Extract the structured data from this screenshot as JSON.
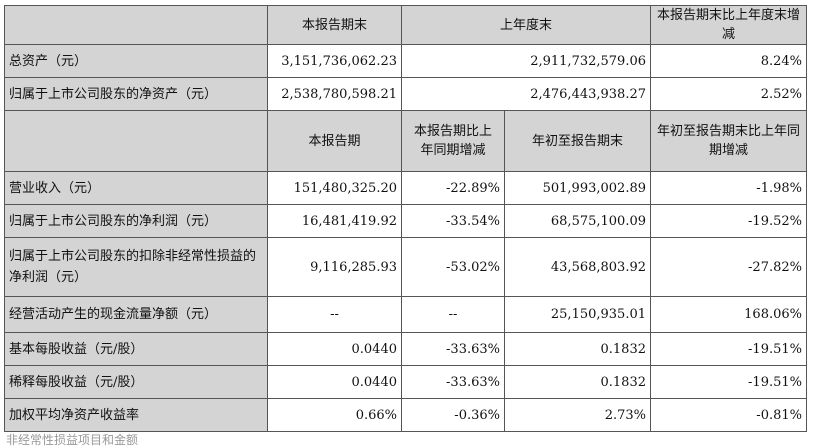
{
  "section1": {
    "headers": [
      "本报告期末",
      "上年度末",
      "本报告期末比上年度末增减"
    ],
    "rows": [
      {
        "label": "总资产（元）",
        "v1": "3,151,736,062.23",
        "v2": "2,911,732,579.06",
        "v3": "8.24%"
      },
      {
        "label": "归属于上市公司股东的净资产（元）",
        "v1": "2,538,780,598.21",
        "v2": "2,476,443,938.27",
        "v3": "2.52%"
      }
    ]
  },
  "section2": {
    "headers": [
      "本报告期",
      "本报告期比上年同期增减",
      "年初至报告期末",
      "年初至报告期末比上年同期增减"
    ],
    "rows": [
      {
        "label": "营业收入（元）",
        "v1": "151,480,325.20",
        "v2": "-22.89%",
        "v3": "501,993,002.89",
        "v4": "-1.98%"
      },
      {
        "label": "归属于上市公司股东的净利润（元）",
        "v1": "16,481,419.92",
        "v2": "-33.54%",
        "v3": "68,575,100.09",
        "v4": "-19.52%"
      },
      {
        "label": "归属于上市公司股东的扣除非经常性损益的净利润（元）",
        "v1": "9,116,285.93",
        "v2": "-53.02%",
        "v3": "43,568,803.92",
        "v4": "-27.82%"
      },
      {
        "label": "经营活动产生的现金流量净额（元）",
        "v1": "--",
        "v2": "--",
        "v3": "25,150,935.01",
        "v4": "168.06%"
      },
      {
        "label": "基本每股收益（元/股）",
        "v1": "0.0440",
        "v2": "-33.63%",
        "v3": "0.1832",
        "v4": "-19.51%"
      },
      {
        "label": "稀释每股收益（元/股）",
        "v1": "0.0440",
        "v2": "-33.63%",
        "v3": "0.1832",
        "v4": "-19.51%"
      },
      {
        "label": "加权平均净资产收益率",
        "v1": "0.66%",
        "v2": "-0.36%",
        "v3": "2.73%",
        "v4": "-0.81%"
      }
    ]
  },
  "footer_text": "非经常性损益项目和金额"
}
